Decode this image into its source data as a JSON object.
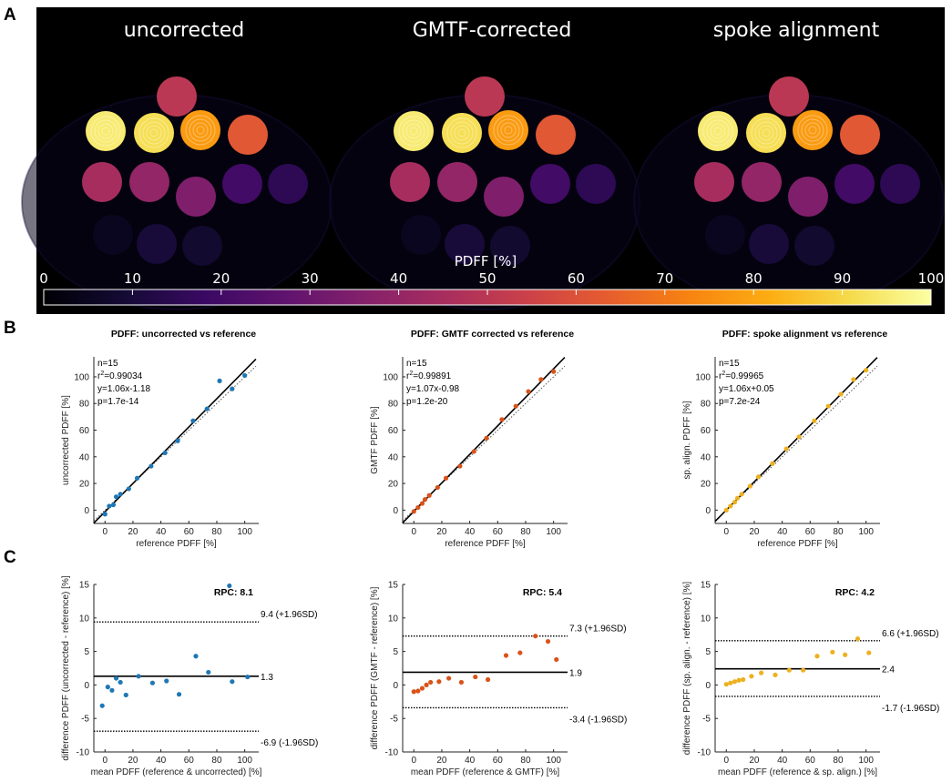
{
  "panel_labels": {
    "a": "A",
    "b": "B",
    "c": "C"
  },
  "images": {
    "titles": [
      "uncorrected",
      "GMTF-corrected",
      "spoke alignment"
    ],
    "colorbar": {
      "label": "PDFF [%]",
      "ticks": [
        "0",
        "10",
        "20",
        "30",
        "40",
        "50",
        "60",
        "70",
        "80",
        "90",
        "100"
      ],
      "colors": [
        "#000004",
        "#140b35",
        "#3a0963",
        "#60136e",
        "#85216b",
        "#a92e5e",
        "#cb4149",
        "#e65d2f",
        "#f78311",
        "#fcad12",
        "#f5db4c",
        "#fcffa4"
      ]
    },
    "phantom_vials_pdff": [
      50,
      95,
      92,
      78,
      62,
      45,
      40,
      35,
      20,
      15,
      5,
      10,
      8,
      2
    ]
  },
  "series_colors": [
    "#1f77b4",
    "#d95319",
    "#edb120"
  ],
  "chart_data": [
    {
      "type": "scatter",
      "title": "PDFF: uncorrected vs reference",
      "xlabel": "reference PDFF [%]",
      "ylabel": "uncorrected PDFF [%]",
      "xlim": [
        -8,
        110
      ],
      "ylim": [
        -10,
        115
      ],
      "xticks": [
        "0",
        "20",
        "40",
        "60",
        "80",
        "100"
      ],
      "yticks": [
        "0",
        "20",
        "40",
        "60",
        "80",
        "100"
      ],
      "stats": {
        "n": "n=15",
        "r2_prefix": "r",
        "r2_exp": "2",
        "r2_val": "=0.99034",
        "fit": "y=1.06x-1.18",
        "p": "p=1.7e-14"
      },
      "fit": {
        "slope": 1.06,
        "intercept": -1.18
      },
      "x": [
        0,
        3,
        6,
        8,
        11,
        17,
        23,
        33,
        43,
        52,
        63,
        73,
        82,
        91,
        100
      ],
      "y": [
        -3,
        3,
        4,
        10,
        12,
        16,
        24,
        33,
        43,
        52,
        67,
        76,
        97,
        91,
        101
      ]
    },
    {
      "type": "scatter",
      "title": "PDFF: GMTF corrected vs reference",
      "xlabel": "reference PDFF [%]",
      "ylabel": "GMTF PDFF [%]",
      "xlim": [
        -8,
        110
      ],
      "ylim": [
        -10,
        115
      ],
      "xticks": [
        "0",
        "20",
        "40",
        "60",
        "80",
        "100"
      ],
      "yticks": [
        "0",
        "20",
        "40",
        "60",
        "80",
        "100"
      ],
      "stats": {
        "n": "n=15",
        "r2_prefix": "r",
        "r2_exp": "2",
        "r2_val": "=0.99891",
        "fit": "y=1.07x-0.98",
        "p": "p=1.2e-20"
      },
      "fit": {
        "slope": 1.07,
        "intercept": -0.98
      },
      "x": [
        0,
        3,
        6,
        8,
        11,
        17,
        23,
        33,
        43,
        52,
        63,
        73,
        82,
        91,
        100
      ],
      "y": [
        -1,
        2,
        5,
        8,
        11,
        17,
        24,
        33,
        44,
        54,
        68,
        78,
        89,
        98,
        104
      ]
    },
    {
      "type": "scatter",
      "title": "PDFF: spoke alignment vs reference",
      "xlabel": "reference PDFF [%]",
      "ylabel": "sp. align. PDFF [%]",
      "xlim": [
        -8,
        110
      ],
      "ylim": [
        -10,
        115
      ],
      "xticks": [
        "0",
        "20",
        "40",
        "60",
        "80",
        "100"
      ],
      "yticks": [
        "0",
        "20",
        "40",
        "60",
        "80",
        "100"
      ],
      "stats": {
        "n": "n=15",
        "r2_prefix": "r",
        "r2_exp": "2",
        "r2_val": "=0.99965",
        "fit": "y=1.06x+0.05",
        "p": "p=7.2e-24"
      },
      "fit": {
        "slope": 1.06,
        "intercept": 0.05
      },
      "x": [
        0,
        3,
        6,
        8,
        11,
        17,
        23,
        33,
        43,
        52,
        63,
        73,
        82,
        91,
        100
      ],
      "y": [
        0,
        3,
        6,
        9,
        12,
        18,
        25,
        35,
        46,
        55,
        67,
        78,
        87,
        98,
        105
      ]
    },
    {
      "type": "bland-altman",
      "title": "",
      "xlabel": "mean PDFF (reference & uncorrected) [%]",
      "ylabel": "difference PDFF (uncorrected - reference) [%]",
      "xlim": [
        -8,
        110
      ],
      "ylim": [
        -10,
        15
      ],
      "xticks": [
        "0",
        "20",
        "40",
        "60",
        "80",
        "100"
      ],
      "yticks": [
        "-10",
        "-5",
        "0",
        "5",
        "10",
        "15"
      ],
      "rpc": "RPC: 8.1",
      "mean": 1.3,
      "upper": 9.4,
      "lower": -6.9,
      "mean_label": "1.3",
      "upper_label": "9.4 (+1.96SD)",
      "lower_label": "-6.9 (-1.96SD)",
      "x": [
        -2,
        2,
        5,
        8,
        11,
        15,
        24,
        34,
        44,
        53,
        65,
        74,
        89,
        91,
        102
      ],
      "y": [
        -3.1,
        -0.3,
        -0.8,
        1.0,
        0.4,
        -1.5,
        1.3,
        0.3,
        0.6,
        -1.4,
        4.3,
        1.9,
        14.8,
        0.5,
        1.2
      ]
    },
    {
      "type": "bland-altman",
      "title": "",
      "xlabel": "mean PDFF (reference & GMTF) [%]",
      "ylabel": "difference PDFF (GMTF - reference) [%]",
      "xlim": [
        -8,
        110
      ],
      "ylim": [
        -10,
        15
      ],
      "xticks": [
        "0",
        "20",
        "40",
        "60",
        "80",
        "100"
      ],
      "yticks": [
        "-10",
        "-5",
        "0",
        "5",
        "10",
        "15"
      ],
      "rpc": "RPC: 5.4",
      "mean": 1.9,
      "upper": 7.3,
      "lower": -3.4,
      "mean_label": "1.9",
      "upper_label": "7.3 (+1.96SD)",
      "lower_label": "-3.4 (-1.96SD)",
      "x": [
        0,
        3,
        6,
        9,
        12,
        18,
        25,
        34,
        44,
        53,
        66,
        76,
        87,
        96,
        102
      ],
      "y": [
        -1.0,
        -0.9,
        -0.5,
        0.0,
        0.4,
        0.5,
        1.0,
        0.4,
        1.2,
        0.8,
        4.4,
        4.8,
        7.3,
        6.5,
        3.8
      ]
    },
    {
      "type": "bland-altman",
      "title": "",
      "xlabel": "mean PDFF (reference & sp. align.) [%]",
      "ylabel": "difference PDFF (sp. align. - reference) [%]",
      "xlim": [
        -8,
        110
      ],
      "ylim": [
        -10,
        15
      ],
      "xticks": [
        "0",
        "20",
        "40",
        "60",
        "80",
        "100"
      ],
      "yticks": [
        "-10",
        "-5",
        "0",
        "5",
        "10",
        "15"
      ],
      "rpc": "RPC: 4.2",
      "mean": 2.4,
      "upper": 6.6,
      "lower": -1.7,
      "mean_label": "2.4",
      "upper_label": "6.6 (+1.96SD)",
      "lower_label": "-1.7 (-1.96SD)",
      "x": [
        0,
        3,
        6,
        9,
        12,
        18,
        25,
        35,
        45,
        55,
        65,
        76,
        85,
        94,
        102
      ],
      "y": [
        0.1,
        0.3,
        0.5,
        0.7,
        0.8,
        1.3,
        1.8,
        1.5,
        2.2,
        2.2,
        4.3,
        4.9,
        4.5,
        6.9,
        4.8
      ]
    }
  ]
}
